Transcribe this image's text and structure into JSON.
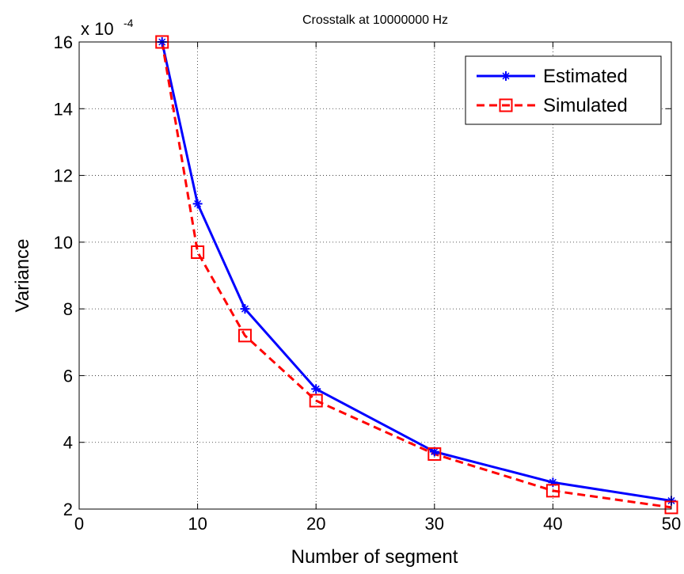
{
  "chart_data": {
    "type": "line",
    "title": "Crosstalk at 10000000 Hz",
    "xlabel": "Number of segment",
    "ylabel": "Variance",
    "xlim": [
      0,
      50
    ],
    "ylim": [
      2,
      16
    ],
    "y_multiplier": "x 10",
    "y_exponent": "-4",
    "xticks": [
      0,
      10,
      20,
      30,
      40,
      50
    ],
    "yticks": [
      2,
      4,
      6,
      8,
      10,
      12,
      14,
      16
    ],
    "grid": true,
    "legend_position": "top-right",
    "series": [
      {
        "name": "Estimated",
        "color": "#0000ff",
        "style": "solid",
        "marker": "star",
        "x": [
          7,
          10,
          14,
          20,
          30,
          40,
          50
        ],
        "y": [
          16.0,
          11.15,
          8.0,
          5.6,
          3.72,
          2.8,
          2.25
        ]
      },
      {
        "name": "Simulated",
        "color": "#ff0000",
        "style": "dashed",
        "marker": "square",
        "x": [
          7,
          10,
          14,
          20,
          30,
          40,
          50
        ],
        "y": [
          16.0,
          9.7,
          7.2,
          5.25,
          3.65,
          2.55,
          2.05
        ]
      }
    ]
  }
}
